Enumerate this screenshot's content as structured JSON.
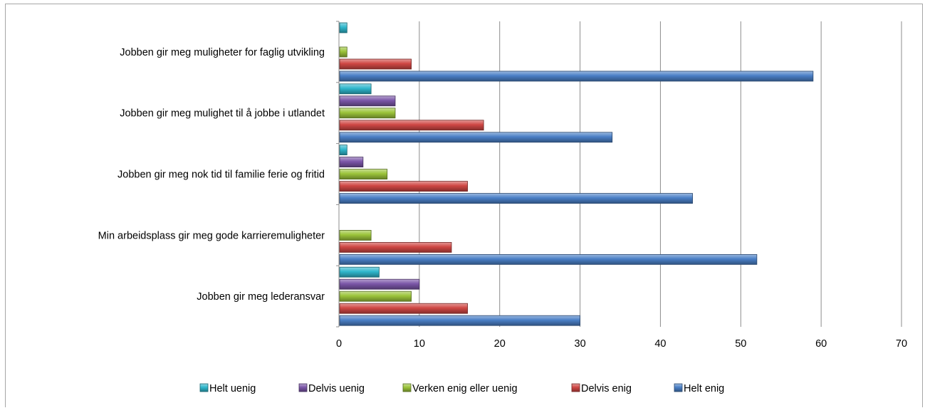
{
  "chart_data": {
    "type": "bar",
    "orientation": "horizontal",
    "title": "",
    "xlabel": "",
    "ylabel": "",
    "xlim": [
      0,
      70
    ],
    "x_ticks": [
      "0",
      "10",
      "20",
      "30",
      "40",
      "50",
      "60",
      "70"
    ],
    "grid": "vertical major gridlines",
    "legend_position": "bottom",
    "categories": [
      "Jobben gir meg muligheter for faglig utvikling",
      "Jobben gir meg mulighet til å jobbe i utlandet",
      "Jobben gir meg nok tid til familie ferie og fritid",
      "Min arbeidsplass gir meg gode karrieremuligheter",
      "Jobben gir meg lederansvar"
    ],
    "series": [
      {
        "name": "Helt uenig",
        "color": "#2fb7cc",
        "values": [
          1,
          4,
          1,
          0,
          5
        ]
      },
      {
        "name": "Delvis uenig",
        "color": "#7b56a8",
        "values": [
          0,
          7,
          3,
          0,
          10
        ]
      },
      {
        "name": "Verken enig eller uenig",
        "color": "#9bc43a",
        "values": [
          1,
          7,
          6,
          4,
          9
        ]
      },
      {
        "name": "Delvis enig",
        "color": "#cf4744",
        "values": [
          9,
          18,
          16,
          14,
          16
        ]
      },
      {
        "name": "Helt enig",
        "color": "#4a7fc6",
        "values": [
          59,
          34,
          44,
          52,
          30
        ]
      }
    ]
  }
}
